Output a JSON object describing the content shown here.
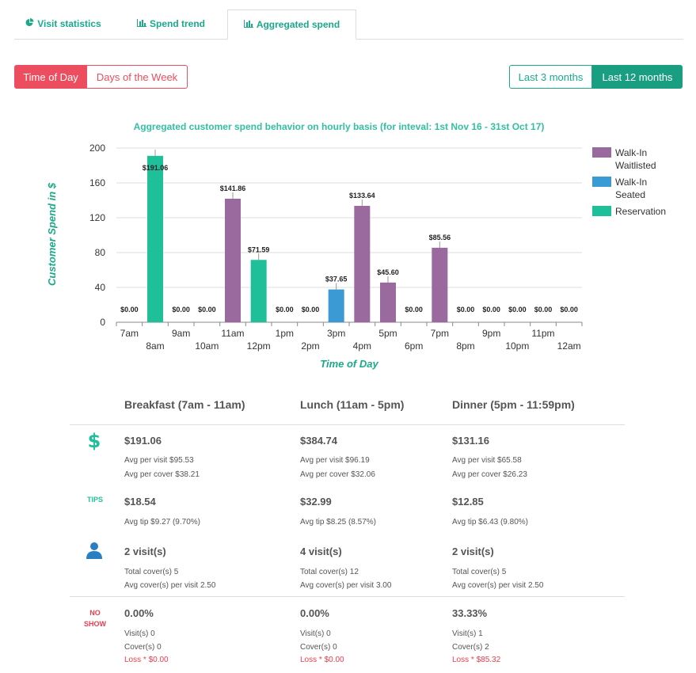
{
  "tabs": [
    {
      "label": "Visit statistics",
      "icon": "pie-chart-icon"
    },
    {
      "label": "Spend trend",
      "icon": "bar-chart-icon"
    },
    {
      "label": "Aggregated spend",
      "icon": "bar-chart-icon"
    }
  ],
  "filters": {
    "time_of_day": "Time of Day",
    "days_of_week": "Days of the Week",
    "last_3_months": "Last 3 months",
    "last_12_months": "Last 12 months"
  },
  "colors": {
    "walkin_waitlisted": "#9a6a9e",
    "walkin_seated": "#3b99d4",
    "reservation": "#1fbf9a",
    "accent_red": "#ec4d5f",
    "accent_green": "#1aaa8a"
  },
  "chart_data": {
    "type": "bar",
    "title": "Aggregated customer spend behavior on hourly basis (for inteval: 1st Nov 16 - 31st Oct 17)",
    "xlabel": "Time of Day",
    "ylabel": "Customer Spend in $",
    "ylim": [
      0,
      200
    ],
    "yticks": [
      0,
      40,
      80,
      120,
      160,
      200
    ],
    "grid": true,
    "legend_position": "right",
    "categories": [
      "7am",
      "8am",
      "9am",
      "10am",
      "11am",
      "12pm",
      "1pm",
      "2pm",
      "3pm",
      "4pm",
      "5pm",
      "6pm",
      "7pm",
      "8pm",
      "9pm",
      "10pm",
      "11pm",
      "12am"
    ],
    "series": [
      {
        "name": "Walk-In Waitlisted",
        "values": [
          0,
          0,
          0,
          0,
          141.86,
          0,
          0,
          0,
          0,
          133.64,
          45.6,
          0,
          85.56,
          0,
          0,
          0,
          0,
          0
        ]
      },
      {
        "name": "Walk-In Seated",
        "values": [
          0,
          0,
          0,
          0,
          0,
          0,
          0,
          0,
          37.65,
          0,
          0,
          0,
          0,
          0,
          0,
          0,
          0,
          0
        ]
      },
      {
        "name": "Reservation",
        "values": [
          0,
          191.06,
          0,
          0,
          0,
          71.59,
          0,
          0,
          0,
          0,
          0,
          0,
          0,
          0,
          0,
          0,
          0,
          0
        ]
      }
    ],
    "data_labels": [
      "$0.00",
      "$191.06",
      "$0.00",
      "$0.00",
      "$141.86",
      "$71.59",
      "$0.00",
      "$0.00",
      "$37.65",
      "$133.64",
      "$45.60",
      "$0.00",
      "$85.56",
      "$0.00",
      "$0.00",
      "$0.00",
      "$0.00",
      "$0.00"
    ],
    "legend_lines": [
      [
        "Walk-In",
        "Waitlisted"
      ],
      [
        "Walk-In",
        "Seated"
      ],
      [
        "Reservation"
      ]
    ]
  },
  "summary": {
    "columns": [
      {
        "header": "Breakfast (7am - 11am)",
        "spend": "$191.06",
        "avg_visit": "Avg per visit $95.53",
        "avg_cover": "Avg per cover $38.21",
        "tips": "$18.54",
        "avg_tip": "Avg tip $9.27 (9.70%)",
        "visits": "2 visit(s)",
        "total_covers": "Total cover(s) 5",
        "avg_covers": "Avg cover(s) per visit 2.50",
        "noshow_pct": "0.00%",
        "noshow_visits": "Visit(s) 0",
        "noshow_covers": "Cover(s) 0",
        "loss": "Loss * $0.00"
      },
      {
        "header": "Lunch (11am - 5pm)",
        "spend": "$384.74",
        "avg_visit": "Avg per visit $96.19",
        "avg_cover": "Avg per cover $32.06",
        "tips": "$32.99",
        "avg_tip": "Avg tip $8.25 (8.57%)",
        "visits": "4 visit(s)",
        "total_covers": "Total cover(s) 12",
        "avg_covers": "Avg cover(s) per visit 3.00",
        "noshow_pct": "0.00%",
        "noshow_visits": "Visit(s) 0",
        "noshow_covers": "Cover(s) 0",
        "loss": "Loss * $0.00"
      },
      {
        "header": "Dinner (5pm - 11:59pm)",
        "spend": "$131.16",
        "avg_visit": "Avg per visit $65.58",
        "avg_cover": "Avg per cover $26.23",
        "tips": "$12.85",
        "avg_tip": "Avg tip $6.43 (9.80%)",
        "visits": "2 visit(s)",
        "total_covers": "Total cover(s) 5",
        "avg_covers": "Avg cover(s) per visit 2.50",
        "noshow_pct": "33.33%",
        "noshow_visits": "Visit(s) 1",
        "noshow_covers": "Cover(s) 2",
        "loss": "Loss * $85.32"
      }
    ],
    "row_labels": {
      "spend_icon": "dollar-icon",
      "tips": "TIPS",
      "visits_icon": "user-icon",
      "noshow_line1": "NO",
      "noshow_line2": "SHOW"
    }
  }
}
